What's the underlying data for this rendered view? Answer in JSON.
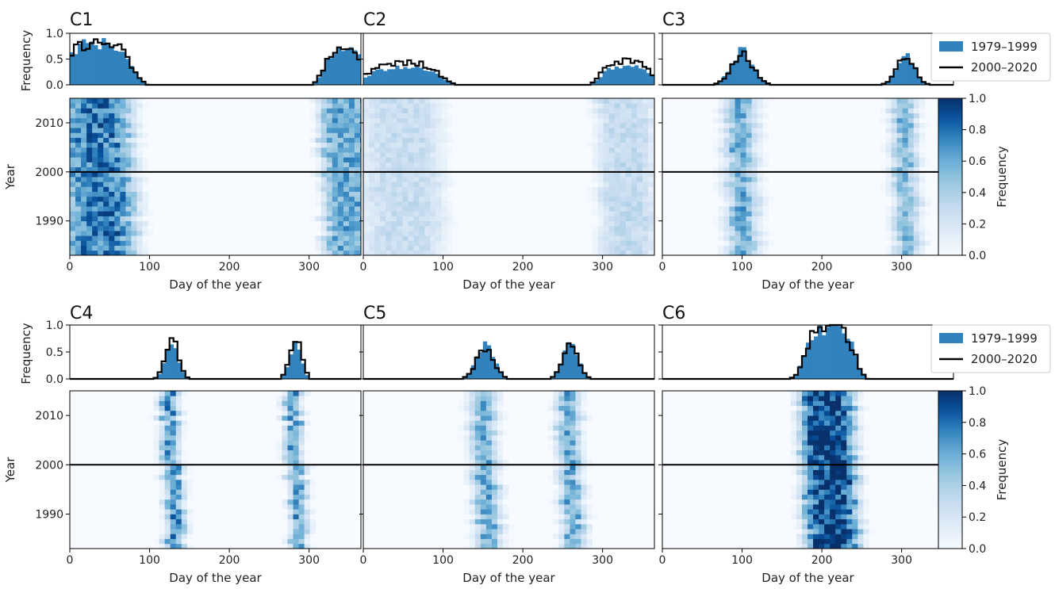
{
  "figure": {
    "colors": {
      "hist_fill": "#3182bd",
      "step_line": "#000000",
      "cmap_low": "#f7fbff",
      "cmap_high": "#08306b"
    },
    "legend": {
      "entries": [
        "1979–1999",
        "2000–2020"
      ]
    },
    "colorbar": {
      "label": "Frequency",
      "ticks": [
        "0.0",
        "0.2",
        "0.4",
        "0.6",
        "0.8",
        "1.0"
      ]
    }
  },
  "chart_data": [
    {
      "type": "heatmap",
      "title": "C1",
      "xlabel": "Day of the year",
      "ylabel": "Year",
      "hist_ylabel": "Frequency",
      "xlim": [
        0,
        365
      ],
      "ylim": [
        1983,
        2015
      ],
      "hist_ylim": [
        0,
        1
      ],
      "xticks": [
        "0",
        "100",
        "200",
        "300"
      ],
      "yticks": [
        "1990",
        "2000",
        "2010"
      ],
      "hist_yticks": [
        "0.0",
        "0.5",
        "1.0"
      ],
      "peaks": [
        {
          "center": 35,
          "width": 45,
          "amp": 0.75,
          "flat": true
        },
        {
          "center": 345,
          "width": 30,
          "amp": 0.6,
          "flat": true
        }
      ],
      "series": [
        {
          "name": "1979–1999",
          "days": [
            0,
            30,
            60,
            80,
            100,
            310,
            330,
            350,
            365
          ],
          "values": [
            0.7,
            0.8,
            0.55,
            0.1,
            0.0,
            0.05,
            0.4,
            0.45,
            0.4
          ]
        },
        {
          "name": "2000–2020",
          "days": [
            0,
            30,
            60,
            80,
            100,
            310,
            330,
            350,
            365
          ],
          "values": [
            0.8,
            0.75,
            0.6,
            0.15,
            0.0,
            0.1,
            0.6,
            0.75,
            0.7
          ]
        }
      ]
    },
    {
      "type": "heatmap",
      "title": "C2",
      "xlabel": "Day of the year",
      "ylabel": "",
      "hist_ylabel": "",
      "xlim": [
        0,
        365
      ],
      "ylim": [
        1983,
        2015
      ],
      "hist_ylim": [
        0,
        1
      ],
      "xticks": [
        "0",
        "100",
        "200",
        "300"
      ],
      "yticks": [],
      "hist_yticks": [],
      "peaks": [
        {
          "center": 50,
          "width": 50,
          "amp": 0.28,
          "flat": true
        },
        {
          "center": 330,
          "width": 35,
          "amp": 0.3,
          "flat": true
        }
      ],
      "series": [
        {
          "name": "1979–1999",
          "days": [
            0,
            50,
            90,
            110,
            290,
            320,
            365
          ],
          "values": [
            0.2,
            0.3,
            0.35,
            0.0,
            0.05,
            0.3,
            0.3
          ]
        },
        {
          "name": "2000–2020",
          "days": [
            0,
            50,
            90,
            110,
            290,
            320,
            365
          ],
          "values": [
            0.25,
            0.3,
            0.3,
            0.0,
            0.1,
            0.45,
            0.3
          ]
        }
      ]
    },
    {
      "type": "heatmap",
      "title": "C3",
      "xlabel": "Day of the year",
      "ylabel": "",
      "hist_ylabel": "",
      "xlim": [
        0,
        365
      ],
      "ylim": [
        1983,
        2015
      ],
      "hist_ylim": [
        0,
        1
      ],
      "xticks": [
        "0",
        "100",
        "200",
        "300"
      ],
      "yticks": [],
      "hist_yticks": [],
      "peaks": [
        {
          "center": 100,
          "width": 22,
          "amp": 0.6,
          "flat": false
        },
        {
          "center": 305,
          "width": 18,
          "amp": 0.55,
          "flat": false
        }
      ],
      "series": [
        {
          "name": "1979–1999",
          "days": [
            60,
            100,
            140,
            280,
            305,
            340
          ],
          "values": [
            0.1,
            0.6,
            0.05,
            0.1,
            0.65,
            0.05
          ]
        },
        {
          "name": "2000–2020",
          "days": [
            60,
            100,
            140,
            280,
            305,
            340
          ],
          "values": [
            0.15,
            0.6,
            0.05,
            0.1,
            0.55,
            0.05
          ]
        }
      ]
    },
    {
      "type": "heatmap",
      "title": "C4",
      "xlabel": "Day of the year",
      "ylabel": "Year",
      "hist_ylabel": "Frequency",
      "xlim": [
        0,
        365
      ],
      "ylim": [
        1983,
        2015
      ],
      "hist_ylim": [
        0,
        1
      ],
      "xticks": [
        "0",
        "100",
        "200",
        "300"
      ],
      "yticks": [
        "1990",
        "2000",
        "2010"
      ],
      "hist_yticks": [
        "0.0",
        "0.5",
        "1.0"
      ],
      "peaks": [
        {
          "center": 128,
          "width": 13,
          "amp": 0.7,
          "flat": false
        },
        {
          "center": 283,
          "width": 12,
          "amp": 0.68,
          "flat": false
        }
      ],
      "series": [
        {
          "name": "1979–1999",
          "days": [
            100,
            128,
            160,
            265,
            283,
            310
          ],
          "values": [
            0.05,
            0.6,
            0.0,
            0.05,
            0.65,
            0.0
          ]
        },
        {
          "name": "2000–2020",
          "days": [
            100,
            128,
            160,
            265,
            283,
            310
          ],
          "values": [
            0.05,
            0.8,
            0.0,
            0.05,
            0.7,
            0.0
          ]
        }
      ]
    },
    {
      "type": "heatmap",
      "title": "C5",
      "xlabel": "Day of the year",
      "ylabel": "",
      "hist_ylabel": "",
      "xlim": [
        0,
        365
      ],
      "ylim": [
        1983,
        2015
      ],
      "hist_ylim": [
        0,
        1
      ],
      "xticks": [
        "0",
        "100",
        "200",
        "300"
      ],
      "yticks": [],
      "hist_yticks": [],
      "peaks": [
        {
          "center": 153,
          "width": 18,
          "amp": 0.6,
          "flat": false
        },
        {
          "center": 260,
          "width": 16,
          "amp": 0.62,
          "flat": false
        }
      ],
      "series": [
        {
          "name": "1979–1999",
          "days": [
            110,
            153,
            200,
            230,
            260,
            290
          ],
          "values": [
            0.05,
            0.6,
            0.1,
            0.05,
            0.65,
            0.0
          ]
        },
        {
          "name": "2000–2020",
          "days": [
            110,
            153,
            200,
            230,
            260,
            290
          ],
          "values": [
            0.05,
            0.55,
            0.05,
            0.05,
            0.6,
            0.0
          ]
        }
      ]
    },
    {
      "type": "heatmap",
      "title": "C6",
      "xlabel": "Day of the year",
      "ylabel": "",
      "hist_ylabel": "",
      "xlim": [
        0,
        365
      ],
      "ylim": [
        1983,
        2015
      ],
      "hist_ylim": [
        0,
        1
      ],
      "xticks": [
        "0",
        "100",
        "200",
        "300"
      ],
      "yticks": [],
      "hist_yticks": [],
      "peaks": [
        {
          "center": 210,
          "width": 34,
          "amp": 0.95,
          "flat": true
        }
      ],
      "series": [
        {
          "name": "1979–1999",
          "days": [
            150,
            180,
            210,
            240,
            280
          ],
          "values": [
            0.05,
            0.8,
            0.95,
            0.8,
            0.0
          ]
        },
        {
          "name": "2000–2020",
          "days": [
            150,
            180,
            210,
            240,
            280
          ],
          "values": [
            0.05,
            0.9,
            0.95,
            0.85,
            0.0
          ]
        }
      ]
    }
  ]
}
